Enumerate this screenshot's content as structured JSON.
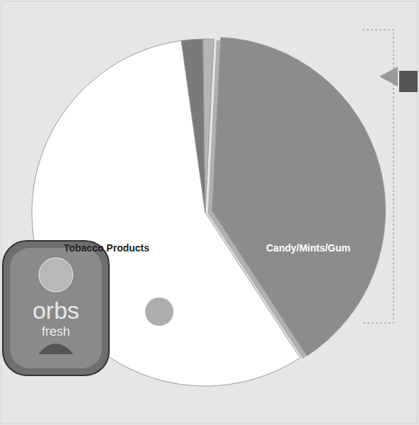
{
  "chart_data": {
    "type": "pie",
    "categories": [
      "Candy/Mints/Gum",
      "Tobacco Products",
      null,
      null
    ],
    "values": [
      40,
      57,
      2,
      1
    ],
    "colors": [
      "#8c8c8c",
      "#ffffff",
      "#7a7a7a",
      "#b5b5b5"
    ],
    "annotations": [
      "orbs",
      "fresh"
    ]
  }
}
